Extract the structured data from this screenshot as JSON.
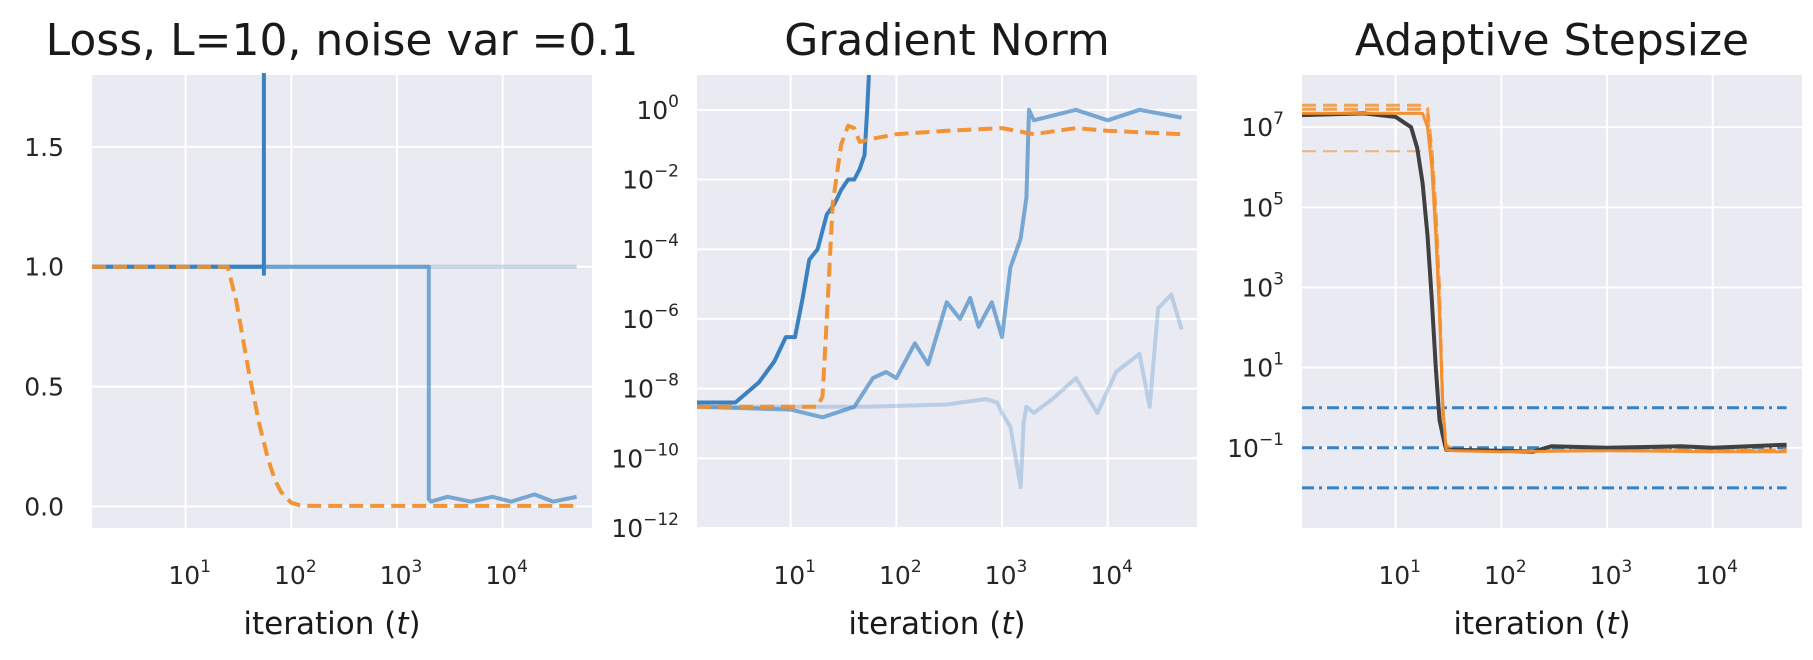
{
  "chart_data": [
    {
      "type": "line",
      "title": "Loss, L=10, noise var =0.1",
      "xlabel": "iteration (t)",
      "ylabel": "",
      "xscale": "log",
      "xlim": [
        1.3,
        70000
      ],
      "ylim": [
        -0.09,
        1.8
      ],
      "grid": true,
      "x_ticks": [
        10,
        100,
        1000,
        10000
      ],
      "x_tick_labels": [
        {
          "base": "10",
          "exp": "1"
        },
        {
          "base": "10",
          "exp": "2"
        },
        {
          "base": "10",
          "exp": "3"
        },
        {
          "base": "10",
          "exp": "4"
        }
      ],
      "y_ticks": [
        0.0,
        0.5,
        1.0,
        1.5
      ],
      "y_tick_labels": [
        "0.0",
        "0.5",
        "1.0",
        "1.5"
      ],
      "series": [
        {
          "color": "#3a81c2",
          "opacity": 0.28,
          "style": "solid",
          "width": 4,
          "x": [
            1.3,
            50000
          ],
          "y": [
            1.0,
            1.0
          ]
        },
        {
          "color": "#3a81c2",
          "opacity": 0.65,
          "style": "solid",
          "width": 4,
          "x": [
            1.3,
            2000,
            2000,
            2100,
            3000,
            5000,
            8000,
            12000,
            20000,
            30000,
            50000
          ],
          "y": [
            1.0,
            1.0,
            0.03,
            0.02,
            0.04,
            0.02,
            0.04,
            0.02,
            0.05,
            0.02,
            0.04
          ]
        },
        {
          "color": "#3a81c2",
          "opacity": 1.0,
          "style": "solid",
          "width": 4,
          "x": [
            1.3,
            55,
            55,
            55,
            55
          ],
          "y": [
            1.0,
            1.0,
            0.97,
            1.0,
            1.85
          ]
        },
        {
          "color": "#f28e2b",
          "opacity": 0.95,
          "style": "dashed",
          "width": 4,
          "x": [
            1.3,
            25,
            30,
            40,
            50,
            60,
            70,
            80,
            100,
            120,
            150,
            50000
          ],
          "y": [
            1.0,
            1.0,
            0.86,
            0.55,
            0.34,
            0.2,
            0.11,
            0.06,
            0.015,
            0.005,
            0.002,
            0.002
          ]
        }
      ]
    },
    {
      "type": "line",
      "title": "Gradient Norm",
      "xlabel": "iteration (t)",
      "ylabel": "",
      "xscale": "log",
      "yscale": "log",
      "xlim": [
        1.3,
        70000
      ],
      "ylim": [
        1e-12,
        10
      ],
      "grid": true,
      "x_ticks": [
        10,
        100,
        1000,
        10000
      ],
      "x_tick_labels": [
        {
          "base": "10",
          "exp": "1"
        },
        {
          "base": "10",
          "exp": "2"
        },
        {
          "base": "10",
          "exp": "3"
        },
        {
          "base": "10",
          "exp": "4"
        }
      ],
      "y_ticks": [
        1,
        0.01,
        0.0001,
        1e-06,
        1e-08,
        1e-10,
        1e-12
      ],
      "y_tick_labels": [
        {
          "base": "10",
          "exp": "0"
        },
        {
          "base": "10",
          "exp": "−2"
        },
        {
          "base": "10",
          "exp": "−4"
        },
        {
          "base": "10",
          "exp": "−6"
        },
        {
          "base": "10",
          "exp": "−8"
        },
        {
          "base": "10",
          "exp": "−10"
        },
        {
          "base": "10",
          "exp": "−12"
        }
      ],
      "series": [
        {
          "color": "#3a81c2",
          "opacity": 0.28,
          "style": "solid",
          "width": 4,
          "x": [
            1.3,
            50,
            300,
            700,
            900,
            1000,
            1200,
            1500,
            1600,
            1700,
            2000,
            3000,
            5000,
            8000,
            12000,
            20000,
            25000,
            30000,
            40000,
            50000
          ],
          "y": [
            3e-09,
            3e-09,
            3.5e-09,
            5e-09,
            4e-09,
            2e-09,
            8e-10,
            1.5e-11,
            1e-09,
            3e-09,
            2e-09,
            5e-09,
            2e-08,
            2e-09,
            3e-08,
            1e-07,
            3e-09,
            2e-06,
            5e-06,
            5e-07
          ]
        },
        {
          "color": "#3a81c2",
          "opacity": 0.65,
          "style": "solid",
          "width": 4,
          "x": [
            1.3,
            10,
            20,
            40,
            60,
            80,
            100,
            150,
            200,
            300,
            400,
            500,
            600,
            800,
            1000,
            1200,
            1500,
            1700,
            1800,
            2000,
            5000,
            10000,
            20000,
            50000
          ],
          "y": [
            3e-09,
            2.5e-09,
            1.5e-09,
            3e-09,
            2e-08,
            3e-08,
            2e-08,
            2e-07,
            5e-08,
            3e-06,
            1e-06,
            4e-06,
            6e-07,
            3e-06,
            3e-07,
            3e-05,
            0.0002,
            0.003,
            1.0,
            0.5,
            1.0,
            0.5,
            1.0,
            0.6
          ]
        },
        {
          "color": "#3a81c2",
          "opacity": 1.0,
          "style": "solid",
          "width": 4,
          "x": [
            1.3,
            3,
            5,
            7,
            9,
            11,
            13,
            15,
            18,
            22,
            26,
            30,
            35,
            40,
            45,
            50,
            53,
            55
          ],
          "y": [
            4e-09,
            4e-09,
            1.5e-08,
            6e-08,
            3e-07,
            3e-07,
            4e-06,
            5e-05,
            0.0001,
            0.001,
            0.002,
            0.005,
            0.01,
            0.01,
            0.02,
            0.05,
            1.0,
            10
          ]
        },
        {
          "color": "#f28e2b",
          "opacity": 0.95,
          "style": "dashed",
          "width": 4,
          "x": [
            1.3,
            18,
            20,
            22,
            25,
            30,
            35,
            40,
            45,
            50,
            60,
            100,
            300,
            1000,
            2000,
            5000,
            10000,
            50000
          ],
          "y": [
            3e-09,
            3e-09,
            6e-09,
            1e-06,
            0.002,
            0.1,
            0.35,
            0.3,
            0.12,
            0.13,
            0.15,
            0.2,
            0.25,
            0.3,
            0.2,
            0.3,
            0.25,
            0.2
          ]
        }
      ]
    },
    {
      "type": "line",
      "title": "Adaptive Stepsize",
      "xlabel": "iteration (t)",
      "ylabel": "",
      "xscale": "log",
      "yscale": "log",
      "xlim": [
        1.3,
        70000
      ],
      "ylim": [
        0.001,
        200000000.0
      ],
      "grid": true,
      "x_ticks": [
        10,
        100,
        1000,
        10000
      ],
      "x_tick_labels": [
        {
          "base": "10",
          "exp": "1"
        },
        {
          "base": "10",
          "exp": "2"
        },
        {
          "base": "10",
          "exp": "3"
        },
        {
          "base": "10",
          "exp": "4"
        }
      ],
      "y_ticks": [
        10000000,
        100000,
        1000,
        10,
        0.1
      ],
      "y_tick_labels": [
        {
          "base": "10",
          "exp": "7"
        },
        {
          "base": "10",
          "exp": "5"
        },
        {
          "base": "10",
          "exp": "3"
        },
        {
          "base": "10",
          "exp": "1"
        },
        {
          "base": "10",
          "exp": "−1"
        }
      ],
      "series": [
        {
          "color": "#3a81c2",
          "opacity": 1.0,
          "style": "dashdot",
          "width": 3,
          "x": [
            1.3,
            50000
          ],
          "y": [
            1.0,
            1.0
          ]
        },
        {
          "color": "#3a81c2",
          "opacity": 1.0,
          "style": "dashdot",
          "width": 3,
          "x": [
            1.3,
            50000
          ],
          "y": [
            0.1,
            0.1
          ]
        },
        {
          "color": "#3a81c2",
          "opacity": 1.0,
          "style": "dashdot",
          "width": 3,
          "x": [
            1.3,
            50000
          ],
          "y": [
            0.01,
            0.01
          ]
        },
        {
          "color": "#f28e2b",
          "opacity": 0.6,
          "style": "dashed",
          "width": 2,
          "x": [
            1.3,
            18
          ],
          "y": [
            2500000.0,
            2500000.0
          ]
        },
        {
          "color": "#f28e2b",
          "opacity": 0.8,
          "style": "dashed",
          "width": 3,
          "x": [
            1.3,
            18,
            20,
            22,
            24,
            26,
            28,
            30,
            35,
            100,
            1000,
            10000,
            50000
          ],
          "y": [
            35000000.0,
            35000000.0,
            30000000.0,
            3000000.0,
            100000.0,
            1000.0,
            1,
            0.12,
            0.09,
            0.085,
            0.085,
            0.09,
            0.085
          ]
        },
        {
          "color": "#f28e2b",
          "opacity": 0.8,
          "style": "dashed",
          "width": 3,
          "x": [
            1.3,
            17,
            20,
            22,
            24,
            26,
            28,
            30,
            35,
            100,
            1000,
            10000,
            50000
          ],
          "y": [
            28000000.0,
            28000000.0,
            20000000.0,
            2000000.0,
            50000.0,
            500.0,
            0.5,
            0.1,
            0.09,
            0.08,
            0.09,
            0.085,
            0.09
          ]
        },
        {
          "color": "#404040",
          "opacity": 1.0,
          "style": "solid",
          "width": 4,
          "x": [
            1.3,
            5,
            10,
            14,
            16,
            18,
            20,
            22,
            24,
            26,
            28,
            30,
            33,
            100,
            200,
            300,
            1000,
            5000,
            10000,
            50000
          ],
          "y": [
            20000000.0,
            22000000.0,
            18000000.0,
            10000000.0,
            3000000.0,
            400000.0,
            20000.0,
            500.0,
            10,
            0.5,
            0.2,
            0.09,
            0.09,
            0.085,
            0.08,
            0.11,
            0.1,
            0.11,
            0.1,
            0.12
          ]
        },
        {
          "color": "#f28e2b",
          "opacity": 0.95,
          "style": "solid",
          "width": 3,
          "x": [
            1.3,
            18,
            20,
            22,
            24,
            26,
            28,
            30,
            35,
            100,
            1000,
            10000,
            50000
          ],
          "y": [
            22000000.0,
            22000000.0,
            10000000.0,
            1000000.0,
            20000.0,
            200.0,
            1,
            0.09,
            0.085,
            0.08,
            0.085,
            0.08,
            0.08
          ]
        }
      ]
    }
  ]
}
